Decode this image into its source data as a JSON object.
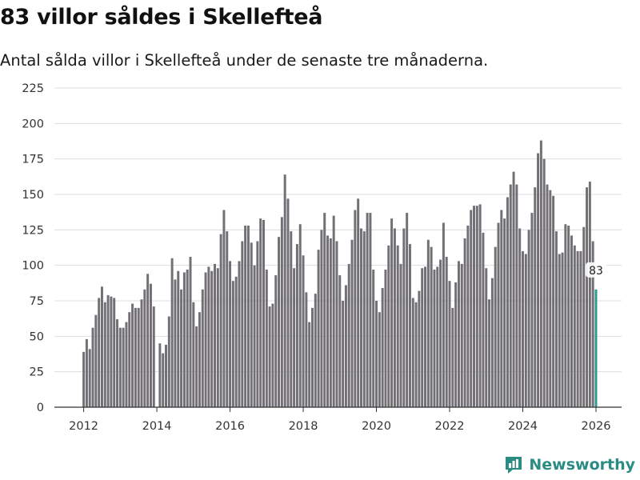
{
  "header": {
    "title": "83 villor såldes i Skellefteå",
    "subtitle": "Antal sålda villor i Skellefteå under de senaste tre månaderna."
  },
  "brand": {
    "name": "Newsworthy",
    "icon": "newsworthy-logo-icon"
  },
  "colors": {
    "bar": "#727075",
    "highlight": "#2b9990",
    "grid": "#dddddd",
    "axis": "#333333",
    "brand": "#2a8c82"
  },
  "chart_data": {
    "type": "bar",
    "title": "83 villor såldes i Skellefteå",
    "subtitle": "Antal sålda villor i Skellefteå under de senaste tre månaderna.",
    "xlabel": "",
    "ylabel": "",
    "ylim": [
      0,
      225
    ],
    "yticks": [
      0,
      25,
      50,
      75,
      100,
      125,
      150,
      175,
      200,
      225
    ],
    "xlim": [
      2011.2,
      2026.7
    ],
    "xticks": [
      2012,
      2014,
      2016,
      2018,
      2020,
      2022,
      2024,
      2026
    ],
    "grid": true,
    "series_start": 2012.0,
    "step_months": 1,
    "last_value_label": "83",
    "values": [
      39,
      48,
      41,
      56,
      65,
      77,
      85,
      74,
      79,
      78,
      77,
      62,
      56,
      56,
      60,
      67,
      73,
      70,
      70,
      76,
      83,
      94,
      87,
      71,
      null,
      45,
      38,
      44,
      64,
      105,
      90,
      96,
      83,
      95,
      97,
      106,
      74,
      57,
      67,
      83,
      95,
      99,
      96,
      101,
      98,
      122,
      139,
      124,
      103,
      89,
      92,
      103,
      117,
      128,
      128,
      116,
      100,
      117,
      133,
      132,
      97,
      71,
      73,
      93,
      120,
      134,
      164,
      147,
      124,
      98,
      115,
      129,
      107,
      81,
      60,
      70,
      80,
      111,
      125,
      137,
      121,
      119,
      135,
      117,
      93,
      75,
      86,
      101,
      118,
      139,
      147,
      126,
      124,
      137,
      137,
      97,
      75,
      67,
      84,
      97,
      114,
      133,
      126,
      114,
      101,
      126,
      137,
      115,
      77,
      74,
      82,
      98,
      99,
      118,
      113,
      97,
      99,
      104,
      130,
      106,
      89,
      70,
      88,
      103,
      101,
      119,
      128,
      139,
      142,
      142,
      143,
      123,
      98,
      76,
      91,
      113,
      130,
      139,
      133,
      148,
      157,
      166,
      157,
      126,
      110,
      108,
      125,
      137,
      155,
      179,
      188,
      175,
      157,
      153,
      149,
      124,
      108,
      109,
      129,
      128,
      121,
      114,
      110,
      110,
      127,
      155,
      159,
      117,
      83
    ]
  }
}
